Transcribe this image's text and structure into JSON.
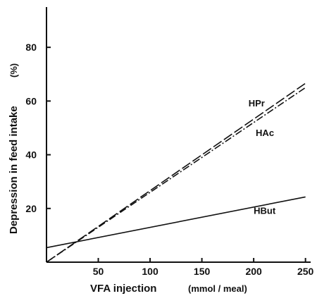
{
  "chart_data": {
    "type": "line",
    "title": "",
    "xlabel": "VFA  injection",
    "xlabel_unit": "(mmol / meal)",
    "ylabel": "Depression  in  feed  intake",
    "ylabel_unit": "(%)",
    "xlim": [
      0,
      255
    ],
    "ylim": [
      0,
      95
    ],
    "xticks": [
      50,
      100,
      150,
      200,
      250
    ],
    "yticks": [
      20,
      40,
      60,
      80
    ],
    "grid": false,
    "legend": "none",
    "series": [
      {
        "name": "HPr",
        "style": "long-dash",
        "x": [
          0,
          250
        ],
        "y": [
          0,
          66.6
        ],
        "label_at": {
          "x": 195,
          "y": 58
        }
      },
      {
        "name": "HAc",
        "style": "dash-dot",
        "x": [
          0,
          250
        ],
        "y": [
          0,
          65
        ],
        "label_at": {
          "x": 202,
          "y": 47
        }
      },
      {
        "name": "HBut",
        "style": "solid",
        "x": [
          0,
          250
        ],
        "y": [
          5.4,
          24.3
        ],
        "label_at": {
          "x": 200,
          "y": 18
        }
      }
    ]
  }
}
